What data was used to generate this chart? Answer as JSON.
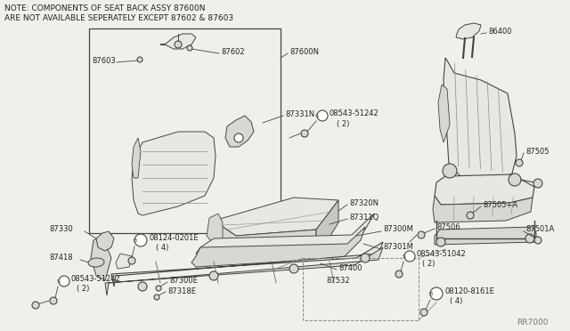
{
  "bg_color": "#f0f0ea",
  "line_color": "#444444",
  "text_color": "#222222",
  "gray_fill": "#d8d8d2",
  "light_fill": "#e8e8e2",
  "note_line1": "NOTE: COMPONENTS OF SEAT BACK ASSY 87600N",
  "note_line2": "ARE NOT AVAILABLE SEPERATELY EXCEPT 87602 & 87603",
  "ref_code": "RR7000",
  "title_font_size": 6.5,
  "label_font_size": 6.0
}
